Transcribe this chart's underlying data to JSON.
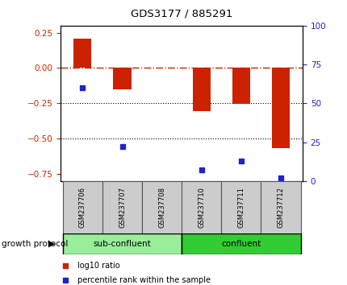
{
  "title": "GDS3177 / 885291",
  "samples": [
    "GSM237706",
    "GSM237707",
    "GSM237708",
    "GSM237710",
    "GSM237711",
    "GSM237712"
  ],
  "log10_ratio": [
    0.21,
    -0.15,
    0.0,
    -0.305,
    -0.255,
    -0.57
  ],
  "percentile_rank": [
    60,
    22,
    null,
    7,
    13,
    2
  ],
  "ylim_left": [
    -0.8,
    0.3
  ],
  "ylim_right": [
    0,
    100
  ],
  "yticks_left": [
    -0.75,
    -0.5,
    -0.25,
    0,
    0.25
  ],
  "yticks_right": [
    0,
    25,
    50,
    75,
    100
  ],
  "bar_color": "#cc2200",
  "dot_color": "#2222cc",
  "bar_width": 0.45,
  "dotted_lines": [
    -0.25,
    -0.5
  ],
  "groups": [
    {
      "label": "sub-confluent",
      "samples": [
        0,
        1,
        2
      ],
      "color": "#99ee99"
    },
    {
      "label": "confluent",
      "samples": [
        3,
        4,
        5
      ],
      "color": "#33cc33"
    }
  ],
  "group_label": "growth protocol",
  "legend": [
    {
      "label": "log10 ratio",
      "color": "#cc2200"
    },
    {
      "label": "percentile rank within the sample",
      "color": "#2222cc"
    }
  ],
  "background_color": "#ffffff",
  "tick_label_color_left": "#cc2200",
  "tick_label_color_right": "#2222cc",
  "sample_box_color": "#cccccc"
}
